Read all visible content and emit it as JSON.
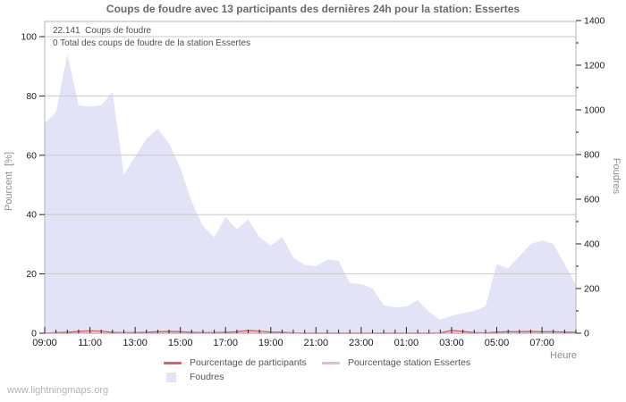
{
  "page": {
    "watermark": "www.lightningmaps.org"
  },
  "chart_data": {
    "type": "area",
    "title": "Coups de foudre avec 13 participants des dernières 24h pour la station: Essertes",
    "annotations": [
      "22.141  Coups de foudre",
      "0 Total des coups de foudre de la station Essertes"
    ],
    "x": {
      "label": "Heure",
      "tick_labels": [
        "09:00",
        "11:00",
        "13:00",
        "15:00",
        "17:00",
        "19:00",
        "21:00",
        "23:00",
        "01:00",
        "03:00",
        "05:00",
        "07:00"
      ],
      "minor_tick_interval_minutes": 30,
      "span_hours": 23.5
    },
    "y_left": {
      "label": "Pourcent  [%]",
      "ticks": [
        0,
        20,
        40,
        60,
        80,
        100
      ],
      "range": [
        0,
        100
      ]
    },
    "y_right": {
      "label": "Foudres",
      "ticks": [
        0,
        200,
        400,
        600,
        800,
        1000,
        1200,
        1400
      ],
      "minor_tick_step": 100,
      "range": [
        0,
        1400
      ]
    },
    "grid": true,
    "categories": [
      "09:00",
      "09:30",
      "10:00",
      "10:30",
      "11:00",
      "11:30",
      "12:00",
      "12:30",
      "13:00",
      "13:30",
      "14:00",
      "14:30",
      "15:00",
      "15:30",
      "16:00",
      "16:30",
      "17:00",
      "17:30",
      "18:00",
      "18:30",
      "19:00",
      "19:30",
      "20:00",
      "20:30",
      "21:00",
      "21:30",
      "22:00",
      "22:30",
      "23:00",
      "23:30",
      "00:00",
      "00:30",
      "01:00",
      "01:30",
      "02:00",
      "02:30",
      "03:00",
      "03:30",
      "04:00",
      "04:30",
      "05:00",
      "05:30",
      "06:00",
      "06:30",
      "07:00",
      "07:30",
      "08:00",
      "08:30"
    ],
    "series": [
      {
        "name": "Pourcentage de participants",
        "type": "line",
        "axis": "left",
        "color": "#d96363",
        "values": [
          0,
          0.2,
          0.3,
          0.6,
          0.8,
          0.7,
          0.3,
          0.2,
          0.2,
          0.3,
          0.5,
          0.6,
          0.5,
          0.3,
          0.2,
          0.2,
          0.3,
          0.5,
          0.9,
          0.7,
          0.4,
          0.3,
          0.1,
          0,
          0,
          0,
          0,
          0,
          0,
          0,
          0,
          0,
          0,
          0,
          0,
          0.1,
          0.9,
          0.6,
          0.2,
          0.1,
          0.4,
          0.5,
          0.5,
          0.6,
          0.5,
          0.5,
          0.4,
          0.3
        ]
      },
      {
        "name": "Pourcentage station Essertes",
        "type": "line",
        "axis": "left",
        "color": "#f3b8b8",
        "values": [
          0,
          0,
          0,
          0,
          0,
          0,
          0,
          0,
          0,
          0,
          0,
          0,
          0,
          0,
          0,
          0,
          0,
          0,
          0,
          0,
          0,
          0,
          0,
          0,
          0,
          0,
          0,
          0,
          0,
          0,
          0,
          0,
          0,
          0,
          0,
          0,
          0,
          0,
          0,
          0,
          0,
          0,
          0,
          0,
          0,
          0,
          0,
          0
        ]
      },
      {
        "name": "Foudres",
        "type": "area",
        "axis": "right",
        "color": "#e3e3f7",
        "values": [
          940,
          990,
          1250,
          1020,
          1015,
          1020,
          1080,
          710,
          790,
          870,
          915,
          850,
          740,
          590,
          480,
          430,
          520,
          465,
          510,
          430,
          392,
          430,
          340,
          305,
          300,
          330,
          325,
          225,
          220,
          200,
          125,
          115,
          120,
          148,
          95,
          60,
          78,
          90,
          100,
          120,
          310,
          290,
          345,
          400,
          415,
          400,
          310,
          215
        ]
      }
    ],
    "legend": {
      "position": "bottom",
      "entries": [
        {
          "label": "Pourcentage de participants",
          "swatch": "line",
          "color": "#d96363"
        },
        {
          "label": "Pourcentage station Essertes",
          "swatch": "line",
          "color": "#f3b8b8"
        },
        {
          "label": "Foudres",
          "swatch": "area",
          "color": "#e3e3f7"
        }
      ]
    },
    "colors": {
      "grid": "#c9c9c9",
      "plot_border": "#b3b3b3",
      "tick_text": "#1a1a1a",
      "tick_mark": "#222222"
    }
  }
}
